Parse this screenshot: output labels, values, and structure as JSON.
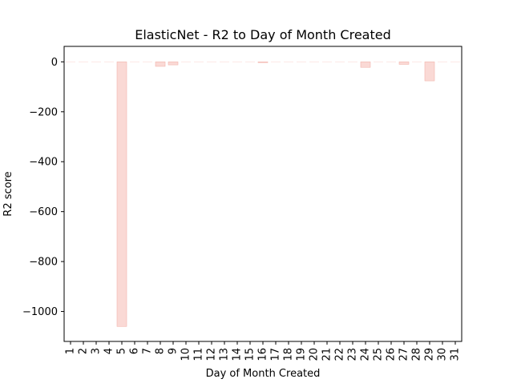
{
  "chart_data": {
    "type": "bar",
    "title": "ElasticNet - R2 to Day of Month Created",
    "xlabel": "Day of Month Created",
    "ylabel": "R2 score",
    "categories": [
      "1",
      "2",
      "3",
      "4",
      "5",
      "6",
      "7",
      "8",
      "9",
      "10",
      "11",
      "12",
      "13",
      "14",
      "15",
      "16",
      "17",
      "18",
      "19",
      "20",
      "21",
      "22",
      "23",
      "24",
      "25",
      "26",
      "27",
      "28",
      "29",
      "30",
      "31"
    ],
    "values": [
      0,
      0,
      0,
      0,
      -1060,
      0,
      0,
      -18,
      -12,
      0,
      0,
      0,
      0,
      0,
      0,
      -3,
      0,
      0,
      0,
      0,
      0,
      0,
      0,
      -22,
      0,
      0,
      -10,
      0,
      -76,
      0,
      0
    ],
    "ylim": [
      -1120,
      62
    ],
    "yticks": [
      0,
      -200,
      -400,
      -600,
      -800,
      -1000
    ],
    "ytick_labels": [
      "0",
      "−200",
      "−400",
      "−600",
      "−800",
      "−1000"
    ],
    "grid": false,
    "bar_color": "#fad9d5",
    "bar_edge_color": "#f2b5ad"
  }
}
